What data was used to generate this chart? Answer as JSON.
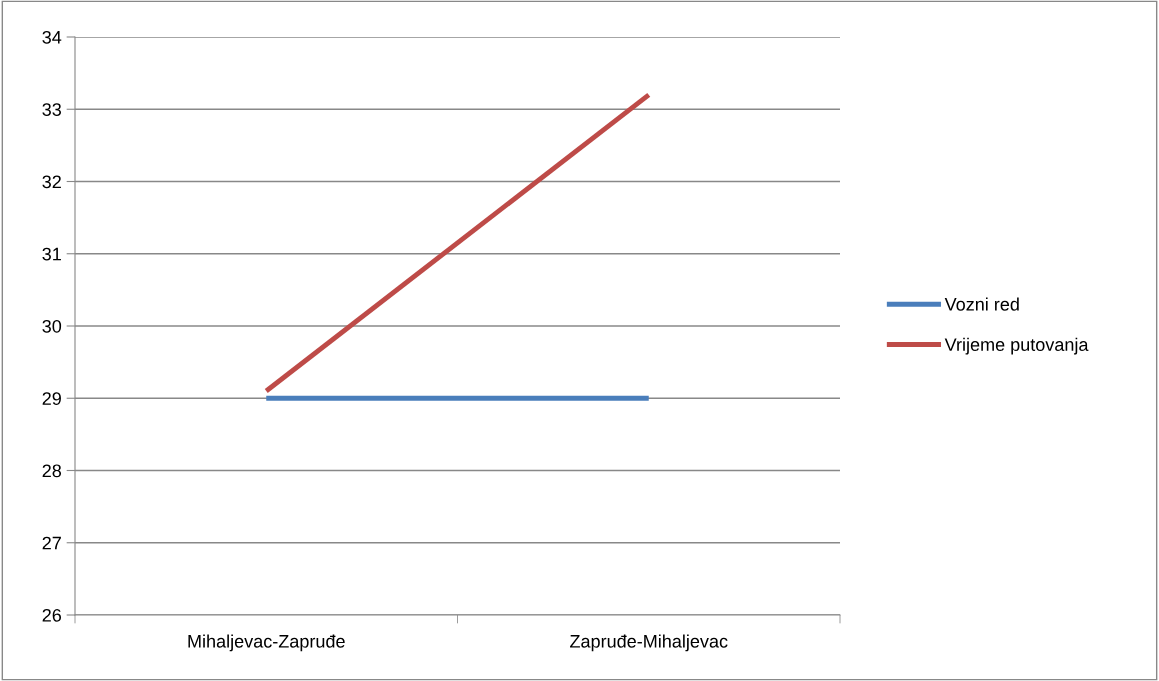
{
  "chart_data": {
    "type": "line",
    "categories": [
      "Mihaljevac-Zapruđe",
      "Zapruđe-Mihaljevac"
    ],
    "series": [
      {
        "name": "Vozni red",
        "color": "#4a7ebb",
        "values": [
          29,
          29
        ]
      },
      {
        "name": "Vrijeme putovanja",
        "color": "#be4b48",
        "values": [
          29.1,
          33.2
        ]
      }
    ],
    "ylim": [
      26,
      34
    ],
    "yticks": [
      26,
      27,
      28,
      29,
      30,
      31,
      32,
      33,
      34
    ],
    "grid": "y",
    "legend": "right",
    "marker": "none",
    "line_style": "solid"
  }
}
